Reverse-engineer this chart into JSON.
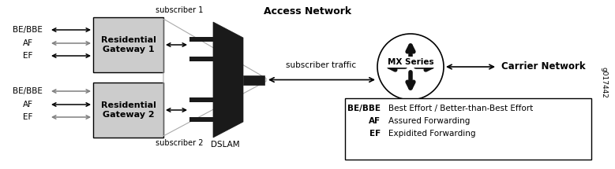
{
  "title": "Access Network",
  "bg_color": "#ffffff",
  "box1_label": "Residential\nGateway 1",
  "box2_label": "Residential\nGateway 2",
  "carrier_label": "Carrier Network",
  "mx_label": "MX Series",
  "dslam_label": "DSLAM",
  "sub1_label": "subscriber 1",
  "sub2_label": "subscriber 2",
  "sub_traffic_label": "subscriber traffic",
  "legend_items": [
    [
      "BE/BBE",
      "Best Effort / Better-than-Best Effort"
    ],
    [
      "AF",
      "Assured Forwarding"
    ],
    [
      "EF",
      "Expidited Forwarding"
    ]
  ],
  "left_labels_1": [
    "BE/BBE",
    "AF",
    "EF"
  ],
  "left_labels_2": [
    "BE/BBE",
    "AF",
    "EF"
  ],
  "arrow_colors_1": [
    "black",
    "gray",
    "black"
  ],
  "arrow_colors_2": [
    "gray",
    "black",
    "gray"
  ],
  "watermark": "g017442",
  "figw": 7.79,
  "figh": 2.15,
  "dpi": 100
}
